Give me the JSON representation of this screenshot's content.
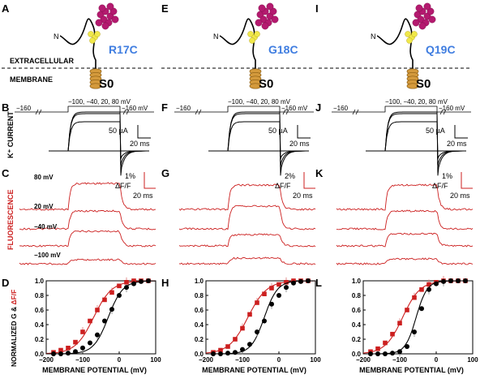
{
  "colors": {
    "black": "#000000",
    "red": "#cc1f1f",
    "mutant": "#3f7de0",
    "helix": "#d49a3c",
    "probe": "#b41a6f",
    "cys": "#f0e84a"
  },
  "labels": {
    "extracellular": "EXTRACELLULAR",
    "membrane": "MEMBRANE",
    "n_term": "N",
    "s0": "S0",
    "k_current": "K⁺ CURRENT",
    "fluorescence": "FLUORESCENCE",
    "y_axis_a": "NORMALIZED G & ",
    "y_axis_b": "ΔF/F",
    "x_axis": "MEMBRANE POTENTIAL (mV)"
  },
  "protocol": {
    "hold_left": "−160",
    "steps": "−100, −40, 20, 80 mV",
    "hold_right": "−160 mV"
  },
  "current_scale": {
    "amp": "50 µA",
    "time": "20 ms"
  },
  "fluor_trace_labels": [
    "80 mV",
    "20 mV",
    "−40 mV",
    "−100 mV"
  ],
  "columns": [
    {
      "mutant": "R17C",
      "p_top": "A",
      "p_cur": "B",
      "p_flu": "C",
      "p_gv": "D",
      "fscale": "1%",
      "fscale_unit": "ΔF/F",
      "fscale_time": "20 ms"
    },
    {
      "mutant": "G18C",
      "p_top": "E",
      "p_cur": "F",
      "p_flu": "G",
      "p_gv": "H",
      "fscale": "2%",
      "fscale_unit": "ΔF/F",
      "fscale_time": "20 ms"
    },
    {
      "mutant": "Q19C",
      "p_top": "I",
      "p_cur": "J",
      "p_flu": "K",
      "p_gv": "L",
      "fscale": "1%",
      "fscale_unit": "ΔF/F",
      "fscale_time": "20 ms"
    }
  ],
  "chart_data": [
    {
      "type": "scatter",
      "xlabel": "MEMBRANE POTENTIAL (mV)",
      "ylabel": "NORMALIZED G & ΔF/F",
      "xlim": [
        -200,
        100
      ],
      "ylim": [
        0,
        1.0
      ],
      "xticks": [
        "−200",
        "−100",
        "0",
        "100"
      ],
      "yticks": [
        "0.0",
        "0.2",
        "0.4",
        "0.6",
        "0.8",
        "1.0"
      ],
      "series": [
        {
          "color": "#cc1f1f",
          "marker": "square",
          "fit": {
            "vhalf": -70,
            "k": 25
          },
          "x": [
            -180,
            -160,
            -140,
            -120,
            -100,
            -80,
            -60,
            -40,
            -20,
            0,
            20,
            40,
            60,
            80
          ],
          "y": [
            0.02,
            0.05,
            0.08,
            0.16,
            0.3,
            0.45,
            0.6,
            0.74,
            0.84,
            0.93,
            0.98,
            1.0,
            1.0,
            1.0
          ]
        },
        {
          "color": "#000000",
          "marker": "circle",
          "fit": {
            "vhalf": -30,
            "k": 20
          },
          "x": [
            -180,
            -160,
            -140,
            -120,
            -100,
            -80,
            -60,
            -40,
            -20,
            0,
            20,
            40,
            60,
            80
          ],
          "y": [
            0.0,
            0.0,
            0.01,
            0.03,
            0.08,
            0.15,
            0.26,
            0.45,
            0.61,
            0.8,
            0.91,
            0.96,
            0.99,
            1.0
          ]
        }
      ]
    },
    {
      "type": "scatter",
      "xlabel": "MEMBRANE POTENTIAL (mV)",
      "ylabel": "",
      "xlim": [
        -200,
        100
      ],
      "ylim": [
        0,
        1.0
      ],
      "xticks": [
        "−200",
        "−100",
        "0",
        "100"
      ],
      "yticks": [
        "0.0",
        "0.2",
        "0.4",
        "0.6",
        "0.8",
        "1.0"
      ],
      "series": [
        {
          "color": "#cc1f1f",
          "marker": "square",
          "fit": {
            "vhalf": -85,
            "k": 26
          },
          "x": [
            -180,
            -160,
            -140,
            -120,
            -100,
            -80,
            -60,
            -40,
            -20,
            0,
            20,
            40,
            60,
            80
          ],
          "y": [
            0.02,
            0.05,
            0.1,
            0.2,
            0.35,
            0.54,
            0.7,
            0.82,
            0.9,
            0.95,
            0.98,
            1.0,
            1.0,
            1.0
          ]
        },
        {
          "color": "#000000",
          "marker": "circle",
          "fit": {
            "vhalf": -40,
            "k": 18
          },
          "x": [
            -180,
            -160,
            -140,
            -120,
            -100,
            -80,
            -60,
            -40,
            -20,
            0,
            20,
            40,
            60,
            80
          ],
          "y": [
            0.0,
            0.0,
            0.01,
            0.02,
            0.06,
            0.13,
            0.3,
            0.45,
            0.68,
            0.8,
            0.91,
            0.97,
            0.99,
            1.0
          ]
        }
      ]
    },
    {
      "type": "scatter",
      "xlabel": "MEMBRANE POTENTIAL (mV)",
      "ylabel": "",
      "xlim": [
        -200,
        100
      ],
      "ylim": [
        0,
        1.0
      ],
      "xticks": [
        "−200",
        "−100",
        "0",
        "100"
      ],
      "yticks": [
        "0.0",
        "0.2",
        "0.4",
        "0.6",
        "0.8",
        "1.0"
      ],
      "series": [
        {
          "color": "#cc1f1f",
          "marker": "square",
          "fit": {
            "vhalf": -92,
            "k": 24
          },
          "x": [
            -180,
            -160,
            -140,
            -120,
            -100,
            -80,
            -60,
            -40,
            -20,
            0,
            20,
            40,
            60,
            80
          ],
          "y": [
            0.03,
            0.07,
            0.15,
            0.27,
            0.42,
            0.6,
            0.77,
            0.88,
            0.95,
            0.98,
            1.0,
            1.0,
            1.0,
            1.0
          ]
        },
        {
          "color": "#000000",
          "marker": "circle",
          "fit": {
            "vhalf": -55,
            "k": 15
          },
          "x": [
            -180,
            -160,
            -140,
            -120,
            -100,
            -80,
            -60,
            -40,
            -20,
            0,
            20,
            40,
            60,
            80
          ],
          "y": [
            0.0,
            0.0,
            0.0,
            0.01,
            0.03,
            0.1,
            0.3,
            0.62,
            0.88,
            0.96,
            0.99,
            1.0,
            1.0,
            1.0
          ]
        }
      ]
    }
  ]
}
